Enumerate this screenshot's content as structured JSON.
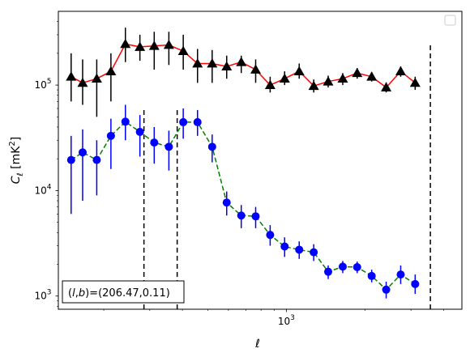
{
  "chart_data": {
    "type": "line",
    "xscale": "log",
    "yscale": "log",
    "xlabel": "ℓ",
    "ylabel_main": "C",
    "ylabel_sub": "ℓ",
    "ylabel_unit": "[mK",
    "ylabel_unit_sup": "2",
    "ylabel_unit_close": "]",
    "xlim": [
      134,
      4700
    ],
    "ylim": [
      750,
      500000
    ],
    "xticks": [
      {
        "value": 1000,
        "base": "10",
        "exp": "3"
      }
    ],
    "yticks": [
      {
        "value": 1000,
        "base": "10",
        "exp": "3"
      },
      {
        "value": 10000,
        "base": "10",
        "exp": "4"
      },
      {
        "value": 100000,
        "base": "10",
        "exp": "5"
      }
    ],
    "annotation": {
      "prefix": "(",
      "var1": "l",
      "comma": ",",
      "var2": "b",
      "suffix": ")=(206.47,0.11)"
    },
    "legend": "top-right (empty)",
    "vlines": [
      {
        "x": 285,
        "y_from": 750,
        "y_to": 60000
      },
      {
        "x": 382,
        "y_from": 750,
        "y_to": 60000
      },
      {
        "x": 3560,
        "y_from": 750,
        "y_to": 250000
      }
    ],
    "series": [
      {
        "marker": "triangle",
        "line_color": "#ff0000",
        "marker_color": "#000000",
        "err_color": "#000000",
        "linestyle": "solid",
        "points": [
          {
            "x": 150,
            "y": 120000,
            "lo": 70000,
            "hi": 200000
          },
          {
            "x": 166,
            "y": 105000,
            "lo": 65000,
            "hi": 175000
          },
          {
            "x": 188,
            "y": 115000,
            "lo": 50000,
            "hi": 175000
          },
          {
            "x": 213,
            "y": 135000,
            "lo": 70000,
            "hi": 200000
          },
          {
            "x": 242,
            "y": 245000,
            "lo": 165000,
            "hi": 350000
          },
          {
            "x": 275,
            "y": 230000,
            "lo": 170000,
            "hi": 300000
          },
          {
            "x": 312,
            "y": 235000,
            "lo": 140000,
            "hi": 320000
          },
          {
            "x": 355,
            "y": 240000,
            "lo": 155000,
            "hi": 320000
          },
          {
            "x": 403,
            "y": 210000,
            "lo": 140000,
            "hi": 300000
          },
          {
            "x": 457,
            "y": 160000,
            "lo": 105000,
            "hi": 220000
          },
          {
            "x": 520,
            "y": 160000,
            "lo": 105000,
            "hi": 215000
          },
          {
            "x": 591,
            "y": 150000,
            "lo": 115000,
            "hi": 190000
          },
          {
            "x": 672,
            "y": 165000,
            "lo": 130000,
            "hi": 190000
          },
          {
            "x": 763,
            "y": 140000,
            "lo": 105000,
            "hi": 175000
          },
          {
            "x": 867,
            "y": 100000,
            "lo": 85000,
            "hi": 120000
          },
          {
            "x": 985,
            "y": 115000,
            "lo": 100000,
            "hi": 135000
          },
          {
            "x": 1120,
            "y": 135000,
            "lo": 115000,
            "hi": 160000
          },
          {
            "x": 1273,
            "y": 98000,
            "lo": 85000,
            "hi": 113000
          },
          {
            "x": 1446,
            "y": 108000,
            "lo": 95000,
            "hi": 123000
          },
          {
            "x": 1644,
            "y": 115000,
            "lo": 100000,
            "hi": 130000
          },
          {
            "x": 1867,
            "y": 130000,
            "lo": 115000,
            "hi": 145000
          },
          {
            "x": 2122,
            "y": 120000,
            "lo": 108000,
            "hi": 133000
          },
          {
            "x": 2411,
            "y": 95000,
            "lo": 85000,
            "hi": 106000
          },
          {
            "x": 2740,
            "y": 135000,
            "lo": 120000,
            "hi": 150000
          },
          {
            "x": 3113,
            "y": 105000,
            "lo": 90000,
            "hi": 120000
          }
        ]
      },
      {
        "marker": "circle",
        "line_color": "#008000",
        "marker_color": "#0000ff",
        "err_color": "#0000ff",
        "linestyle": "dashed",
        "points": [
          {
            "x": 150,
            "y": 19500,
            "lo": 6000,
            "hi": 33000
          },
          {
            "x": 166,
            "y": 23000,
            "lo": 8000,
            "hi": 38000
          },
          {
            "x": 188,
            "y": 19500,
            "lo": 9000,
            "hi": 30000
          },
          {
            "x": 213,
            "y": 33000,
            "lo": 16000,
            "hi": 48000
          },
          {
            "x": 242,
            "y": 45000,
            "lo": 30000,
            "hi": 65000
          },
          {
            "x": 275,
            "y": 36000,
            "lo": 21000,
            "hi": 52000
          },
          {
            "x": 312,
            "y": 28500,
            "lo": 18000,
            "hi": 40000
          },
          {
            "x": 355,
            "y": 26000,
            "lo": 15500,
            "hi": 37000
          },
          {
            "x": 403,
            "y": 44500,
            "lo": 31000,
            "hi": 60000
          },
          {
            "x": 457,
            "y": 44500,
            "lo": 33000,
            "hi": 58000
          },
          {
            "x": 520,
            "y": 26000,
            "lo": 18500,
            "hi": 34000
          },
          {
            "x": 591,
            "y": 7700,
            "lo": 5800,
            "hi": 9800
          },
          {
            "x": 672,
            "y": 5800,
            "lo": 4400,
            "hi": 7300
          },
          {
            "x": 763,
            "y": 5700,
            "lo": 4400,
            "hi": 7000
          },
          {
            "x": 867,
            "y": 3800,
            "lo": 3000,
            "hi": 4700
          },
          {
            "x": 985,
            "y": 2950,
            "lo": 2350,
            "hi": 3600
          },
          {
            "x": 1120,
            "y": 2750,
            "lo": 2250,
            "hi": 3300
          },
          {
            "x": 1273,
            "y": 2600,
            "lo": 2150,
            "hi": 3100
          },
          {
            "x": 1446,
            "y": 1700,
            "lo": 1450,
            "hi": 1950
          },
          {
            "x": 1644,
            "y": 1900,
            "lo": 1650,
            "hi": 2150
          },
          {
            "x": 1867,
            "y": 1880,
            "lo": 1650,
            "hi": 2120
          },
          {
            "x": 2122,
            "y": 1550,
            "lo": 1350,
            "hi": 1780
          },
          {
            "x": 2411,
            "y": 1150,
            "lo": 950,
            "hi": 1370
          },
          {
            "x": 2740,
            "y": 1600,
            "lo": 1300,
            "hi": 1950
          },
          {
            "x": 3113,
            "y": 1300,
            "lo": 1050,
            "hi": 1600
          }
        ]
      }
    ]
  }
}
